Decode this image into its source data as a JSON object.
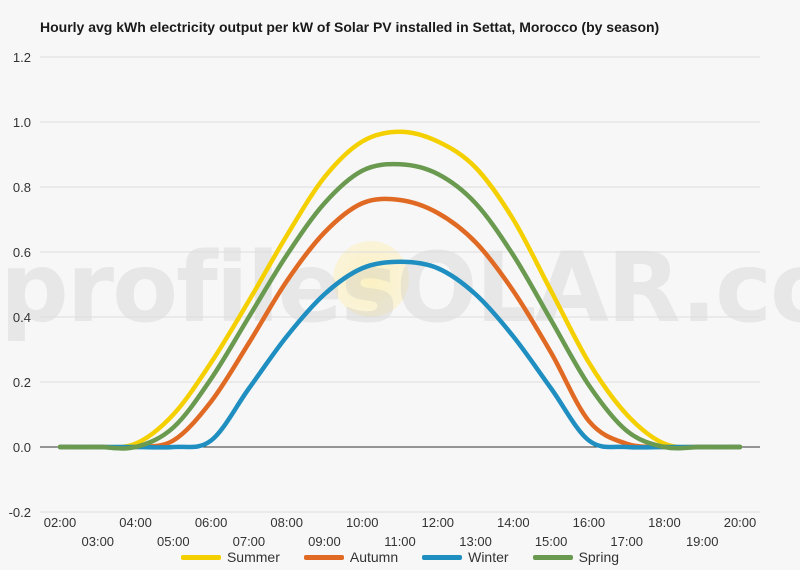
{
  "chart_data": {
    "type": "line",
    "title": "Hourly avg kWh electricity output per kW of Solar PV installed in Settat, Morocco (by season)",
    "xlabel": "",
    "ylabel": "",
    "ylim": [
      -0.2,
      1.2
    ],
    "yticks": [
      "-0.2",
      "0.0",
      "0.2",
      "0.4",
      "0.6",
      "0.8",
      "1.0",
      "1.2"
    ],
    "categories": [
      "02:00",
      "03:00",
      "04:00",
      "05:00",
      "06:00",
      "07:00",
      "08:00",
      "09:00",
      "10:00",
      "11:00",
      "12:00",
      "13:00",
      "14:00",
      "15:00",
      "16:00",
      "17:00",
      "18:00",
      "19:00",
      "20:00"
    ],
    "grid": true,
    "legend_position": "bottom",
    "series": [
      {
        "name": "Summer",
        "color": "#f5d000",
        "values": [
          0,
          0,
          0.01,
          0.1,
          0.26,
          0.45,
          0.65,
          0.83,
          0.94,
          0.97,
          0.94,
          0.86,
          0.7,
          0.48,
          0.26,
          0.1,
          0.01,
          0,
          0
        ]
      },
      {
        "name": "Autumn",
        "color": "#e06a23",
        "values": [
          0,
          0,
          0,
          0.02,
          0.14,
          0.32,
          0.51,
          0.66,
          0.75,
          0.76,
          0.72,
          0.63,
          0.48,
          0.29,
          0.08,
          0.01,
          0,
          0,
          0
        ]
      },
      {
        "name": "Winter",
        "color": "#1f8ec0",
        "values": [
          0,
          0,
          0,
          0,
          0.02,
          0.18,
          0.34,
          0.47,
          0.55,
          0.57,
          0.55,
          0.47,
          0.34,
          0.18,
          0.02,
          0,
          0,
          0,
          0
        ]
      },
      {
        "name": "Spring",
        "color": "#6a9a50",
        "values": [
          0,
          0,
          0,
          0.06,
          0.21,
          0.4,
          0.59,
          0.75,
          0.85,
          0.87,
          0.84,
          0.75,
          0.59,
          0.39,
          0.19,
          0.05,
          0,
          0,
          0
        ]
      }
    ]
  },
  "watermark": "profilesOLAR.com"
}
